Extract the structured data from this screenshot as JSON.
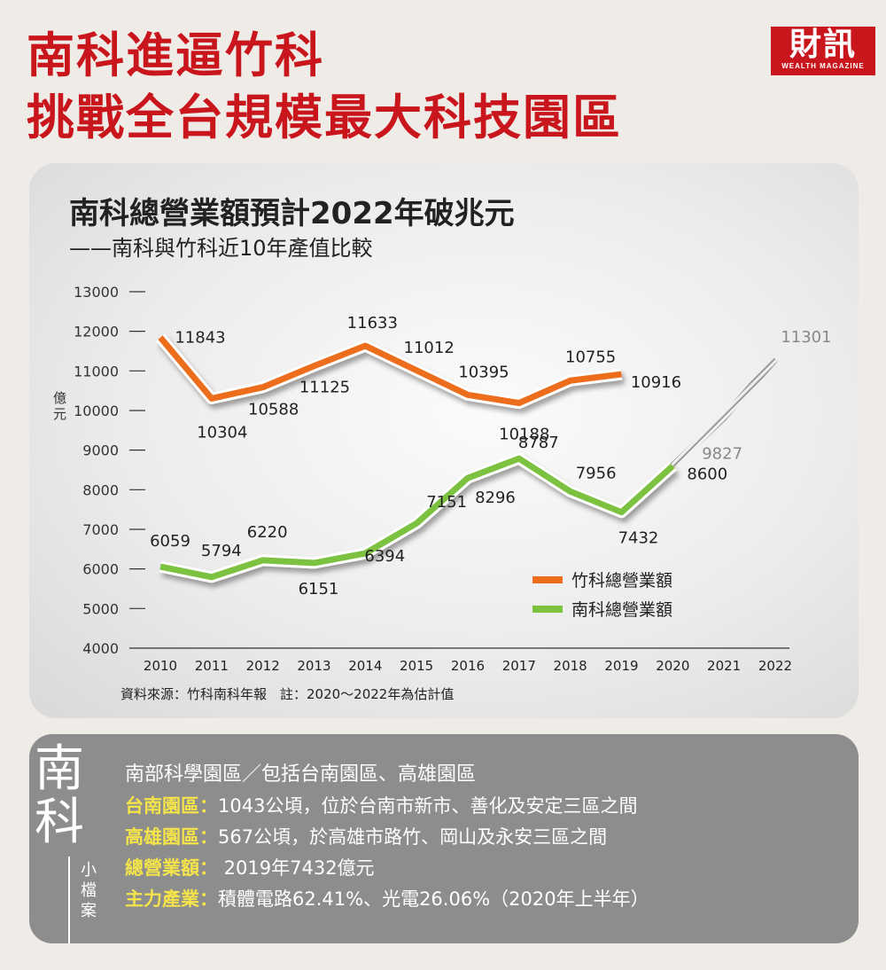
{
  "headline": [
    "南科進逼竹科",
    "挑戰全台規模最大科技園區"
  ],
  "logo": {
    "zh": "財訊",
    "en": "WEALTH MAGAZINE"
  },
  "colors": {
    "red": "#c9161d",
    "orange": "#ec6e1b",
    "green": "#7cc23f",
    "gray": "#9a9a9a",
    "yellow": "#f4e44a"
  },
  "chart_data": {
    "type": "line",
    "title": "南科總營業額預計2022年破兆元",
    "subtitle": "——南科與竹科近10年產值比較",
    "ylabel": "億元",
    "x": [
      2010,
      2011,
      2012,
      2013,
      2014,
      2015,
      2016,
      2017,
      2018,
      2019,
      2020,
      2021,
      2022
    ],
    "xticks": [
      "2010",
      "2011",
      "2012",
      "2013",
      "2014",
      "2015",
      "2016",
      "2017",
      "2018",
      "2019",
      "2020",
      "2021",
      "2022"
    ],
    "yticks": [
      4000,
      5000,
      6000,
      7000,
      8000,
      9000,
      10000,
      11000,
      12000,
      13000
    ],
    "ylim": [
      4000,
      13000
    ],
    "series": [
      {
        "name": "竹科總營業額",
        "color": "#ec6e1b",
        "x": [
          2010,
          2011,
          2012,
          2013,
          2014,
          2015,
          2016,
          2017,
          2018,
          2019
        ],
        "values": [
          11843,
          10304,
          10588,
          11125,
          11633,
          11012,
          10395,
          10188,
          10755,
          10916
        ]
      },
      {
        "name": "南科總營業額",
        "color": "#7cc23f",
        "x": [
          2010,
          2011,
          2012,
          2013,
          2014,
          2015,
          2016,
          2017,
          2018,
          2019,
          2020
        ],
        "values": [
          6059,
          5794,
          6220,
          6151,
          6394,
          7151,
          8296,
          8787,
          7956,
          7432,
          8600
        ]
      },
      {
        "name": "",
        "color": "#9a9a9a",
        "estimated": true,
        "x": [
          2020,
          2021,
          2022
        ],
        "values": [
          8600,
          9827,
          11301
        ]
      }
    ],
    "legend": [
      "竹科總營業額",
      "南科總營業額"
    ],
    "legend_position": "bottom-right",
    "source": "資料來源：竹科南科年報　註：2020～2022年為估計值"
  },
  "info": {
    "title_big": [
      "南",
      "科"
    ],
    "title_small": [
      "小",
      "檔",
      "案"
    ],
    "heading": "南部科學園區／包括台南園區、高雄園區",
    "rows": [
      {
        "key": "台南園區：",
        "value": "1043公頃，位於台南市新市、善化及安定三區之間"
      },
      {
        "key": "高雄園區：",
        "value": "567公頃，於高雄市路竹、岡山及永安三區之間"
      },
      {
        "key": "總營業額：",
        "value": " 2019年7432億元"
      },
      {
        "key": "主力產業：",
        "value": "積體電路62.41%、光電26.06%（2020年上半年）"
      }
    ]
  }
}
